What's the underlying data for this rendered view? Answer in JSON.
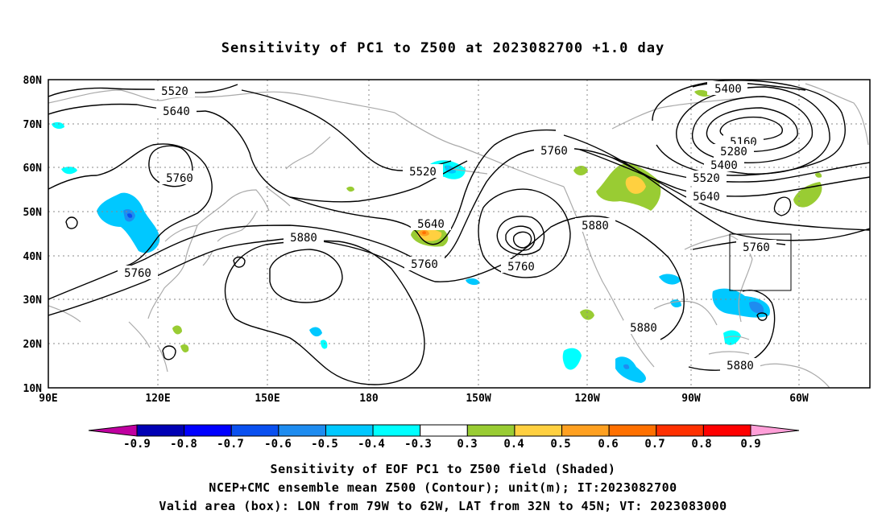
{
  "title": "Sensitivity of PC1 to Z500 at 2023082700 +1.0 day",
  "captions": {
    "line1": "Sensitivity of EOF PC1 to Z500 field (Shaded)",
    "line2": "NCEP+CMC ensemble mean Z500 (Contour); unit(m); IT:2023082700",
    "line3": "Valid area (box): LON from 79W to 62W, LAT from 32N to 45N; VT: 2023083000"
  },
  "map": {
    "lat_labels": [
      "80N",
      "70N",
      "60N",
      "50N",
      "40N",
      "30N",
      "20N",
      "10N"
    ],
    "lon_labels": [
      "90E",
      "120E",
      "150E",
      "180",
      "150W",
      "120W",
      "90W",
      "60W"
    ],
    "contour_labels": [
      {
        "text": "5400"
      },
      {
        "text": "5520"
      },
      {
        "text": "5640"
      },
      {
        "text": "5760"
      },
      {
        "text": "5160"
      },
      {
        "text": "5280"
      },
      {
        "text": "5400"
      },
      {
        "text": "5520"
      },
      {
        "text": "5640"
      },
      {
        "text": "5760"
      },
      {
        "text": "5520"
      },
      {
        "text": "5760"
      },
      {
        "text": "5640"
      },
      {
        "text": "5880"
      },
      {
        "text": "5880"
      },
      {
        "text": "5760"
      },
      {
        "text": "5760"
      },
      {
        "text": "5760"
      },
      {
        "text": "5880"
      },
      {
        "text": "5880"
      }
    ],
    "valid_box": {
      "lon_west": -79,
      "lon_east": -62,
      "lat_south": 32,
      "lat_north": 45
    }
  },
  "colorbar": {
    "labels": [
      "-0.9",
      "-0.8",
      "-0.7",
      "-0.6",
      "-0.5",
      "-0.4",
      "-0.3",
      "0.3",
      "0.4",
      "0.5",
      "0.6",
      "0.7",
      "0.8",
      "0.9"
    ],
    "colors": [
      "#0000b4",
      "#0000ff",
      "#0a50f0",
      "#1e8cf0",
      "#00c8ff",
      "#00ffff",
      "#ffffff",
      "#99cc33",
      "#ffd040",
      "#ffa020",
      "#ff7000",
      "#ff3000",
      "#ff0000"
    ],
    "low_end_color": "#c000a0",
    "high_end_color": "#ff9fd8"
  }
}
